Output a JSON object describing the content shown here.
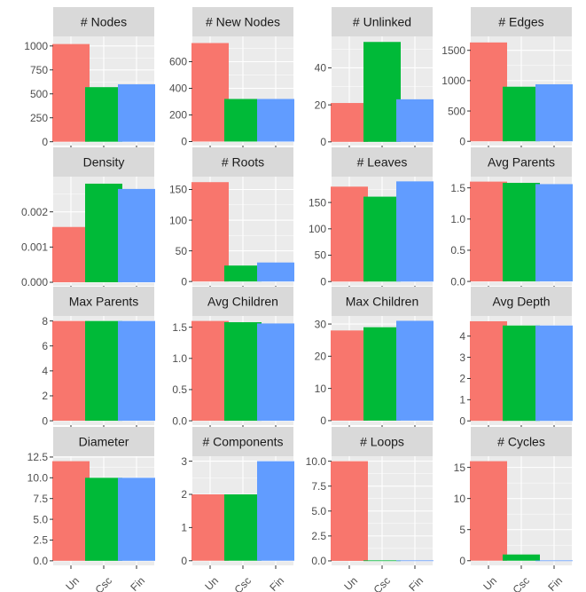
{
  "chart_data": {
    "type": "bar",
    "layout": "facet-grid",
    "colors": {
      "Un": "#F8766D",
      "Csc": "#00BA38",
      "Fin": "#619CFF",
      "panel_bg": "#EBEBEB",
      "strip_bg": "#D9D9D9",
      "grid_major": "#FFFFFF"
    },
    "categories": [
      "Un",
      "Csc",
      "Fin"
    ],
    "show_x_labels_bottom_row_only": true,
    "facets": [
      {
        "title": "# Nodes",
        "values": [
          1020,
          570,
          600
        ],
        "ylim": [
          -40,
          1100
        ],
        "ticks": [
          0,
          250,
          500,
          750,
          1000
        ],
        "tick_labels": [
          "0",
          "250",
          "500",
          "750",
          "1000"
        ]
      },
      {
        "title": "# New Nodes",
        "values": [
          740,
          320,
          320
        ],
        "ylim": [
          -30,
          790
        ],
        "ticks": [
          0,
          200,
          400,
          600
        ],
        "tick_labels": [
          "0",
          "200",
          "400",
          "600"
        ]
      },
      {
        "title": "# Unlinked",
        "values": [
          21,
          54,
          23
        ],
        "ylim": [
          -2,
          57
        ],
        "ticks": [
          0,
          20,
          40
        ],
        "tick_labels": [
          "0",
          "20",
          "40"
        ]
      },
      {
        "title": "# Edges",
        "values": [
          1630,
          900,
          940
        ],
        "ylim": [
          -70,
          1730
        ],
        "ticks": [
          0,
          500,
          1000,
          1500
        ],
        "tick_labels": [
          "0",
          "500",
          "1000",
          "1500"
        ]
      },
      {
        "title": "Density",
        "values": [
          0.00157,
          0.0028,
          0.00265
        ],
        "ylim": [
          -0.0001,
          0.003
        ],
        "ticks": [
          0.0,
          0.001,
          0.002
        ],
        "tick_labels": [
          "0.000",
          "0.001",
          "0.002"
        ]
      },
      {
        "title": "# Roots",
        "values": [
          162,
          26,
          31
        ],
        "ylim": [
          -7,
          171
        ],
        "ticks": [
          0,
          50,
          100,
          150
        ],
        "tick_labels": [
          "0",
          "50",
          "100",
          "150"
        ]
      },
      {
        "title": "# Leaves",
        "values": [
          180,
          161,
          190
        ],
        "ylim": [
          -8,
          199
        ],
        "ticks": [
          0,
          50,
          100,
          150
        ],
        "tick_labels": [
          "0",
          "50",
          "100",
          "150"
        ]
      },
      {
        "title": "Avg Parents",
        "values": [
          1.6,
          1.58,
          1.56
        ],
        "ylim": [
          -0.07,
          1.68
        ],
        "ticks": [
          0.0,
          0.5,
          1.0,
          1.5
        ],
        "tick_labels": [
          "0.0",
          "0.5",
          "1.0",
          "1.5"
        ]
      },
      {
        "title": "Max Parents",
        "values": [
          8,
          8,
          8
        ],
        "ylim": [
          -0.35,
          8.4
        ],
        "ticks": [
          0,
          2,
          4,
          6,
          8
        ],
        "tick_labels": [
          "0",
          "2",
          "4",
          "6",
          "8"
        ]
      },
      {
        "title": "Avg Children",
        "values": [
          1.6,
          1.58,
          1.56
        ],
        "ylim": [
          -0.07,
          1.68
        ],
        "ticks": [
          0.0,
          0.5,
          1.0,
          1.5
        ],
        "tick_labels": [
          "0.0",
          "0.5",
          "1.0",
          "1.5"
        ]
      },
      {
        "title": "Max Children",
        "values": [
          28,
          29,
          31
        ],
        "ylim": [
          -1.4,
          32.5
        ],
        "ticks": [
          0,
          10,
          20,
          30
        ],
        "tick_labels": [
          "0",
          "10",
          "20",
          "30"
        ]
      },
      {
        "title": "Avg Depth",
        "values": [
          4.7,
          4.5,
          4.5
        ],
        "ylim": [
          -0.2,
          4.95
        ],
        "ticks": [
          0,
          1,
          2,
          3,
          4
        ],
        "tick_labels": [
          "0",
          "1",
          "2",
          "3",
          "4"
        ]
      },
      {
        "title": "Diameter",
        "values": [
          12,
          10,
          10
        ],
        "ylim": [
          -0.55,
          12.6
        ],
        "ticks": [
          0.0,
          2.5,
          5.0,
          7.5,
          10.0,
          12.5
        ],
        "tick_labels": [
          "0.0",
          "2.5",
          "5.0",
          "7.5",
          "10.0",
          "12.5"
        ]
      },
      {
        "title": "# Components",
        "values": [
          2,
          2,
          3
        ],
        "ylim": [
          -0.14,
          3.15
        ],
        "ticks": [
          0,
          1,
          2,
          3
        ],
        "tick_labels": [
          "0",
          "1",
          "2",
          "3"
        ]
      },
      {
        "title": "# Loops",
        "values": [
          10,
          0.05,
          0.05
        ],
        "ylim": [
          -0.45,
          10.5
        ],
        "ticks": [
          0.0,
          2.5,
          5.0,
          7.5,
          10.0
        ],
        "tick_labels": [
          "0.0",
          "2.5",
          "5.0",
          "7.5",
          "10.0"
        ]
      },
      {
        "title": "# Cycles",
        "values": [
          16,
          1,
          0.05
        ],
        "ylim": [
          -0.75,
          16.8
        ],
        "ticks": [
          0,
          5,
          10,
          15
        ],
        "tick_labels": [
          "0",
          "5",
          "10",
          "15"
        ]
      }
    ]
  }
}
